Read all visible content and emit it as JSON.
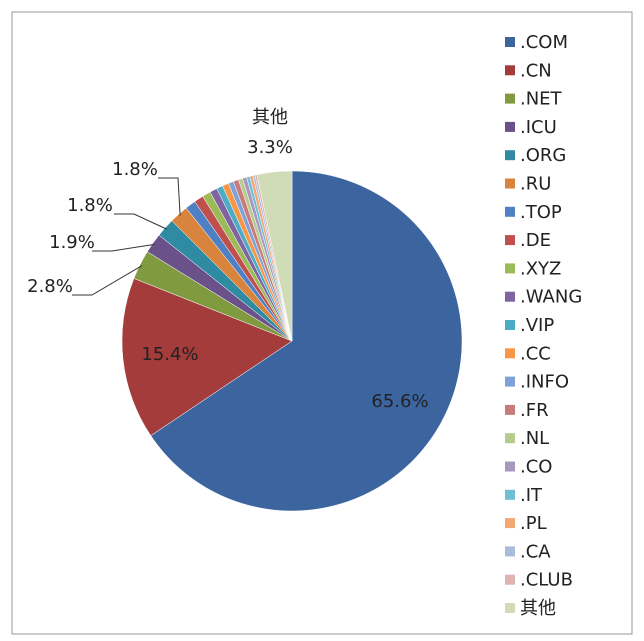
{
  "chart_data": {
    "type": "pie",
    "categories": [
      ".COM",
      ".CN",
      ".NET",
      ".ICU",
      ".ORG",
      ".RU",
      ".TOP",
      ".DE",
      ".XYZ",
      ".WANG",
      ".VIP",
      ".CC",
      ".INFO",
      ".FR",
      ".NL",
      ".CO",
      ".IT",
      ".PL",
      ".CA",
      ".CLUB",
      "其他"
    ],
    "values": [
      65.6,
      15.4,
      2.8,
      1.9,
      1.8,
      1.8,
      1.0,
      0.9,
      0.8,
      0.7,
      0.6,
      0.6,
      0.5,
      0.5,
      0.4,
      0.4,
      0.3,
      0.3,
      0.2,
      0.2,
      3.3
    ],
    "value_labels": [
      "65.6%",
      "15.4%",
      "2.8%",
      "1.9%",
      "1.8%",
      "1.8%",
      null,
      null,
      null,
      null,
      null,
      null,
      null,
      null,
      null,
      null,
      null,
      null,
      null,
      null,
      "3.3%"
    ],
    "colors": [
      "#3c65a0",
      "#a33c3a",
      "#7f9a3f",
      "#6a5189",
      "#2f8ba2",
      "#d9843c",
      "#4f80c4",
      "#c0504d",
      "#9bbb59",
      "#8064a2",
      "#4bacc6",
      "#f79646",
      "#7fa3d6",
      "#c77b7a",
      "#b5cc8e",
      "#a898c0",
      "#6fbfd4",
      "#f2a772",
      "#a9bcdb",
      "#dfb3b2",
      "#cfdcb5"
    ],
    "legend": "right"
  }
}
